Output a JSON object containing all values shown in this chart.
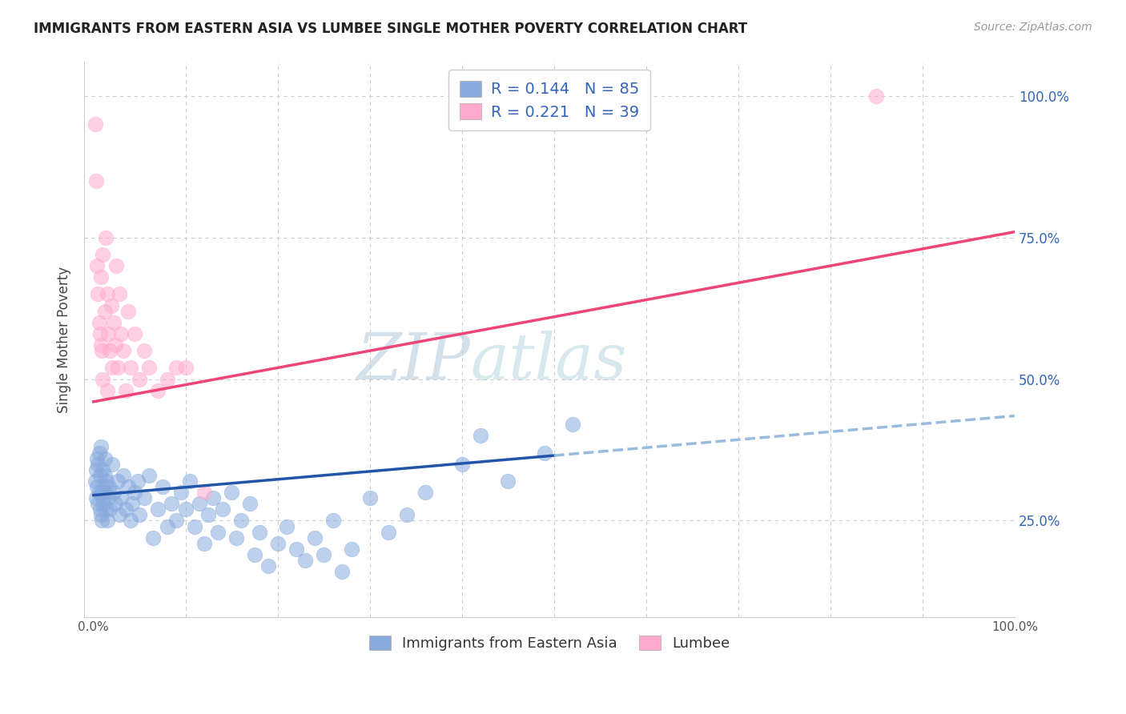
{
  "title": "IMMIGRANTS FROM EASTERN ASIA VS LUMBEE SINGLE MOTHER POVERTY CORRELATION CHART",
  "source": "Source: ZipAtlas.com",
  "ylabel": "Single Mother Poverty",
  "xlim": [
    -0.01,
    1.0
  ],
  "ylim": [
    0.08,
    1.06
  ],
  "xticks": [
    0.0,
    0.1,
    0.2,
    0.3,
    0.4,
    0.5,
    0.6,
    0.7,
    0.8,
    0.9,
    1.0
  ],
  "xticklabels": [
    "0.0%",
    "",
    "",
    "",
    "",
    "",
    "",
    "",
    "",
    "",
    "100.0%"
  ],
  "yticks": [
    0.25,
    0.5,
    0.75,
    1.0
  ],
  "yticklabels_right": [
    "25.0%",
    "50.0%",
    "75.0%",
    "100.0%"
  ],
  "blue_color": "#88AADD",
  "pink_color": "#FFAACC",
  "blue_line_color": "#2255AA",
  "pink_line_color": "#EE4477",
  "dashed_line_color": "#99BBDD",
  "legend_R1": "R = 0.144",
  "legend_N1": "N = 85",
  "legend_R2": "R = 0.221",
  "legend_N2": "N = 39",
  "legend_label1": "Immigrants from Eastern Asia",
  "legend_label2": "Lumbee",
  "watermark": "ZIPatlas",
  "blue_scatter_x": [
    0.002,
    0.003,
    0.003,
    0.004,
    0.004,
    0.005,
    0.005,
    0.006,
    0.006,
    0.007,
    0.007,
    0.008,
    0.008,
    0.009,
    0.009,
    0.01,
    0.01,
    0.011,
    0.011,
    0.012,
    0.012,
    0.013,
    0.013,
    0.014,
    0.015,
    0.016,
    0.017,
    0.018,
    0.02,
    0.022,
    0.024,
    0.026,
    0.028,
    0.03,
    0.032,
    0.035,
    0.038,
    0.04,
    0.042,
    0.045,
    0.048,
    0.05,
    0.055,
    0.06,
    0.065,
    0.07,
    0.075,
    0.08,
    0.085,
    0.09,
    0.095,
    0.1,
    0.105,
    0.11,
    0.115,
    0.12,
    0.125,
    0.13,
    0.135,
    0.14,
    0.15,
    0.155,
    0.16,
    0.17,
    0.175,
    0.18,
    0.19,
    0.2,
    0.21,
    0.22,
    0.23,
    0.24,
    0.25,
    0.26,
    0.27,
    0.28,
    0.3,
    0.32,
    0.34,
    0.36,
    0.4,
    0.42,
    0.45,
    0.49,
    0.52
  ],
  "blue_scatter_y": [
    0.32,
    0.29,
    0.34,
    0.31,
    0.36,
    0.28,
    0.35,
    0.3,
    0.37,
    0.27,
    0.33,
    0.26,
    0.38,
    0.25,
    0.3,
    0.29,
    0.34,
    0.31,
    0.28,
    0.33,
    0.36,
    0.27,
    0.3,
    0.32,
    0.25,
    0.29,
    0.31,
    0.27,
    0.35,
    0.3,
    0.28,
    0.32,
    0.26,
    0.29,
    0.33,
    0.27,
    0.31,
    0.25,
    0.28,
    0.3,
    0.32,
    0.26,
    0.29,
    0.33,
    0.22,
    0.27,
    0.31,
    0.24,
    0.28,
    0.25,
    0.3,
    0.27,
    0.32,
    0.24,
    0.28,
    0.21,
    0.26,
    0.29,
    0.23,
    0.27,
    0.3,
    0.22,
    0.25,
    0.28,
    0.19,
    0.23,
    0.17,
    0.21,
    0.24,
    0.2,
    0.18,
    0.22,
    0.19,
    0.25,
    0.16,
    0.2,
    0.29,
    0.23,
    0.26,
    0.3,
    0.35,
    0.4,
    0.32,
    0.37,
    0.42
  ],
  "pink_scatter_x": [
    0.002,
    0.003,
    0.004,
    0.005,
    0.006,
    0.007,
    0.008,
    0.008,
    0.009,
    0.01,
    0.01,
    0.012,
    0.013,
    0.015,
    0.015,
    0.016,
    0.018,
    0.019,
    0.02,
    0.022,
    0.024,
    0.025,
    0.026,
    0.028,
    0.03,
    0.032,
    0.035,
    0.038,
    0.04,
    0.045,
    0.05,
    0.055,
    0.06,
    0.07,
    0.08,
    0.09,
    0.1,
    0.12,
    0.85
  ],
  "pink_scatter_y": [
    0.95,
    0.85,
    0.7,
    0.65,
    0.6,
    0.58,
    0.56,
    0.68,
    0.55,
    0.72,
    0.5,
    0.62,
    0.75,
    0.65,
    0.48,
    0.58,
    0.55,
    0.63,
    0.52,
    0.6,
    0.56,
    0.7,
    0.52,
    0.65,
    0.58,
    0.55,
    0.48,
    0.62,
    0.52,
    0.58,
    0.5,
    0.55,
    0.52,
    0.48,
    0.5,
    0.52,
    0.52,
    0.3,
    1.0
  ],
  "blue_trend_x": [
    0.0,
    0.5
  ],
  "blue_trend_y": [
    0.295,
    0.365
  ],
  "dashed_trend_x": [
    0.5,
    1.0
  ],
  "dashed_trend_y": [
    0.365,
    0.435
  ],
  "pink_trend_x": [
    0.0,
    1.0
  ],
  "pink_trend_y": [
    0.46,
    0.76
  ],
  "right_ytick_color": "#3366BB",
  "grid_color": "#CCCCCC",
  "bg_color": "#FFFFFF"
}
